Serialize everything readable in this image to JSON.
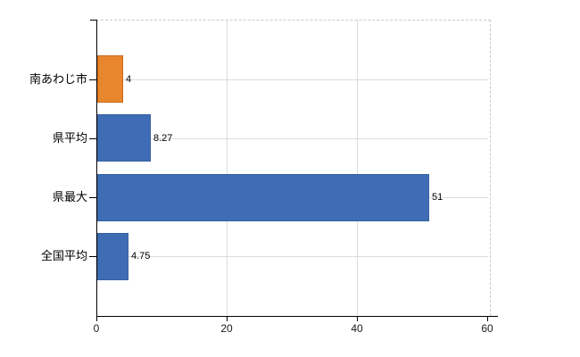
{
  "chart_data": {
    "type": "bar",
    "orientation": "horizontal",
    "title": "",
    "categories": [
      "南あわじ市",
      "県平均",
      "県最大",
      "全国平均"
    ],
    "values": [
      4,
      8.27,
      51,
      4.75
    ],
    "value_labels": [
      "4",
      "8.27",
      "51",
      "4.75"
    ],
    "bar_colors": [
      "#e8862e",
      "#3e6db5",
      "#3e6db5",
      "#3e6db5"
    ],
    "bar_border_colors": [
      "#c9661a",
      "#36619f",
      "#36619f",
      "#36619f"
    ],
    "xlabel": "",
    "ylabel": "",
    "xlim": [
      0,
      60
    ],
    "xticks": [
      0,
      20,
      40,
      60
    ],
    "xtick_labels": [
      "0",
      "20",
      "40",
      "60"
    ],
    "grid": true,
    "legend": "none",
    "colors": {
      "background": "#ffffff",
      "axis_line": "#000000",
      "gridline": "#dcdcdc",
      "plot_border_dashed": "#c6ccc6",
      "label_text": "#000000",
      "xtick_text": "#1a1a1a"
    }
  }
}
